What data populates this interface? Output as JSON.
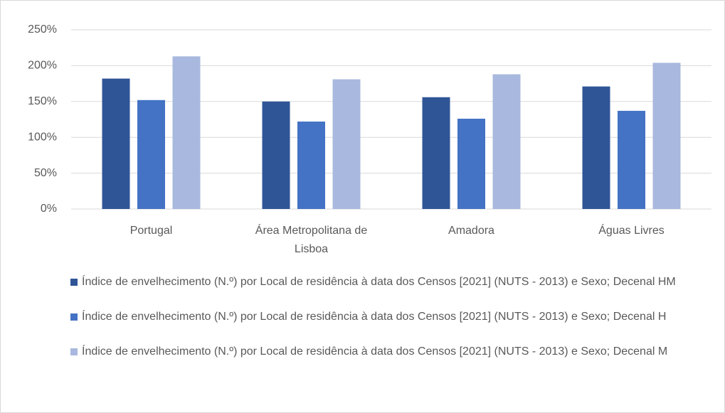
{
  "chart_data": {
    "type": "bar",
    "categories": [
      "Portugal",
      "Área Metropolitana de Lisboa",
      "Amadora",
      "Águas Livres"
    ],
    "series": [
      {
        "name": "Índice de envelhecimento (N.º) por Local de residência à data dos Censos [2021] (NUTS - 2013) e Sexo; Decenal HM",
        "color": "#2f5597",
        "values": [
          182,
          150,
          156,
          171
        ]
      },
      {
        "name": "Índice de envelhecimento (N.º) por Local de residência à data dos Censos [2021] (NUTS - 2013) e Sexo; Decenal H",
        "color": "#4472c4",
        "values": [
          152,
          122,
          126,
          137
        ]
      },
      {
        "name": "Índice de envelhecimento (N.º) por Local de residência à data dos Censos [2021] (NUTS - 2013) e Sexo; Decenal M",
        "color": "#a9b8de",
        "values": [
          213,
          181,
          188,
          204
        ]
      }
    ],
    "ylim": [
      0,
      250
    ],
    "yticks": [
      {
        "value": 0,
        "label": "0%"
      },
      {
        "value": 50,
        "label": "50%"
      },
      {
        "value": 100,
        "label": "100%"
      },
      {
        "value": 150,
        "label": "150%"
      },
      {
        "value": 200,
        "label": "200%"
      },
      {
        "value": 250,
        "label": "250%"
      }
    ],
    "grid": true,
    "legend": "bottom"
  }
}
